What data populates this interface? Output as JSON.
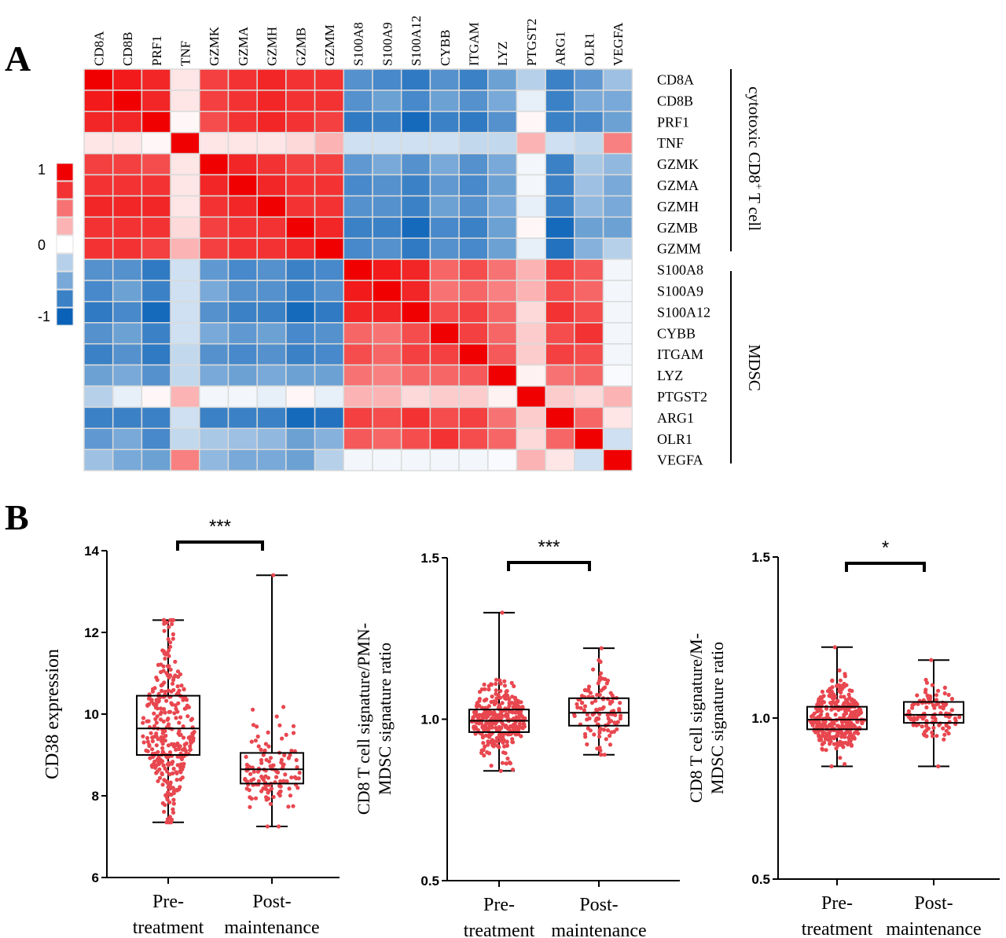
{
  "panels": {
    "a": "A",
    "b": "B"
  },
  "heatmap": {
    "genes": [
      "CD8A",
      "CD8B",
      "PRF1",
      "TNF",
      "GZMK",
      "GZMA",
      "GZMH",
      "GZMB",
      "GZMM",
      "S100A8",
      "S100A9",
      "S100A12",
      "CYBB",
      "ITGAM",
      "LYZ",
      "PTGST2",
      "ARG1",
      "OLR1",
      "VEGFA"
    ],
    "groups": [
      {
        "label": "cytotoxic CD8",
        "sup": "+",
        "suffix": " T cell"
      },
      {
        "label": "MDSC",
        "sup": "",
        "suffix": ""
      }
    ],
    "legend": {
      "ticks": [
        "1",
        "0",
        "-1"
      ]
    },
    "colors": {
      "neg": "#0a62b8",
      "mid": "#ffffff",
      "pos": "#f00000",
      "grid": "#dadada"
    }
  },
  "chart_data": [
    {
      "type": "heatmap",
      "rows": [
        "CD8A",
        "CD8B",
        "PRF1",
        "TNF",
        "GZMK",
        "GZMA",
        "GZMH",
        "GZMB",
        "GZMM",
        "S100A8",
        "S100A9",
        "S100A12",
        "CYBB",
        "ITGAM",
        "LYZ",
        "PTGST2",
        "ARG1",
        "OLR1",
        "VEGFA"
      ],
      "cols": [
        "CD8A",
        "CD8B",
        "PRF1",
        "TNF",
        "GZMK",
        "GZMA",
        "GZMH",
        "GZMB",
        "GZMM",
        "S100A8",
        "S100A9",
        "S100A12",
        "CYBB",
        "ITGAM",
        "LYZ",
        "PTGST2",
        "ARG1",
        "OLR1",
        "VEGFA"
      ],
      "values": [
        [
          1.0,
          0.9,
          0.85,
          0.1,
          0.75,
          0.8,
          0.85,
          0.8,
          0.8,
          -0.7,
          -0.75,
          -0.85,
          -0.7,
          -0.8,
          -0.6,
          -0.3,
          -0.8,
          -0.65,
          -0.4
        ],
        [
          0.9,
          1.0,
          0.85,
          0.1,
          0.75,
          0.8,
          0.85,
          0.8,
          0.8,
          -0.7,
          -0.6,
          -0.75,
          -0.6,
          -0.7,
          -0.55,
          -0.1,
          -0.8,
          -0.55,
          -0.55
        ],
        [
          0.85,
          0.85,
          1.0,
          0.03,
          0.7,
          0.8,
          0.85,
          0.8,
          0.75,
          -0.85,
          -0.8,
          -0.95,
          -0.8,
          -0.85,
          -0.7,
          0.03,
          -0.8,
          -0.75,
          -0.6
        ],
        [
          0.1,
          0.1,
          0.03,
          1.0,
          0.1,
          0.1,
          0.1,
          0.15,
          0.3,
          -0.2,
          -0.2,
          -0.2,
          -0.2,
          -0.25,
          -0.25,
          0.3,
          -0.2,
          -0.25,
          0.5
        ],
        [
          0.75,
          0.75,
          0.7,
          0.1,
          1.0,
          0.85,
          0.8,
          0.75,
          0.75,
          -0.65,
          -0.55,
          -0.7,
          -0.55,
          -0.7,
          -0.55,
          -0.05,
          -0.8,
          -0.35,
          -0.45
        ],
        [
          0.8,
          0.8,
          0.8,
          0.1,
          0.85,
          1.0,
          0.85,
          0.8,
          0.8,
          -0.75,
          -0.7,
          -0.8,
          -0.65,
          -0.75,
          -0.6,
          -0.05,
          -0.8,
          -0.4,
          -0.55
        ],
        [
          0.85,
          0.85,
          0.85,
          0.1,
          0.8,
          0.85,
          1.0,
          0.8,
          0.8,
          -0.7,
          -0.7,
          -0.8,
          -0.6,
          -0.7,
          -0.55,
          -0.1,
          -0.8,
          -0.45,
          -0.55
        ],
        [
          0.8,
          0.8,
          0.8,
          0.15,
          0.75,
          0.8,
          0.8,
          1.0,
          0.85,
          -0.8,
          -0.8,
          -0.95,
          -0.75,
          -0.8,
          -0.6,
          0.03,
          -0.95,
          -0.6,
          -0.6
        ],
        [
          0.8,
          0.8,
          0.75,
          0.3,
          0.75,
          0.8,
          0.8,
          0.85,
          1.0,
          -0.75,
          -0.7,
          -0.85,
          -0.7,
          -0.75,
          -0.6,
          -0.1,
          -0.9,
          -0.5,
          -0.3
        ],
        [
          -0.7,
          -0.7,
          -0.85,
          -0.2,
          -0.65,
          -0.75,
          -0.7,
          -0.8,
          -0.75,
          1.0,
          0.9,
          0.85,
          0.6,
          0.7,
          0.55,
          0.3,
          0.75,
          0.65,
          -0.05
        ],
        [
          -0.75,
          -0.6,
          -0.8,
          -0.2,
          -0.55,
          -0.7,
          -0.7,
          -0.8,
          -0.7,
          0.9,
          1.0,
          0.85,
          0.55,
          0.6,
          0.5,
          0.3,
          0.7,
          0.6,
          -0.05
        ],
        [
          -0.85,
          -0.75,
          -0.95,
          -0.2,
          -0.7,
          -0.8,
          -0.8,
          -0.95,
          -0.85,
          0.85,
          0.85,
          1.0,
          0.7,
          0.75,
          0.6,
          0.15,
          0.8,
          0.7,
          -0.05
        ],
        [
          -0.7,
          -0.6,
          -0.8,
          -0.2,
          -0.55,
          -0.65,
          -0.6,
          -0.75,
          -0.7,
          0.6,
          0.55,
          0.7,
          1.0,
          0.75,
          0.6,
          0.2,
          0.7,
          0.8,
          -0.05
        ],
        [
          -0.8,
          -0.7,
          -0.85,
          -0.25,
          -0.7,
          -0.75,
          -0.7,
          -0.8,
          -0.75,
          0.7,
          0.6,
          0.75,
          0.75,
          1.0,
          0.65,
          0.2,
          0.75,
          0.7,
          -0.05
        ],
        [
          -0.6,
          -0.55,
          -0.7,
          -0.25,
          -0.55,
          -0.6,
          -0.55,
          -0.6,
          -0.6,
          0.55,
          0.5,
          0.6,
          0.6,
          0.65,
          1.0,
          0.05,
          0.55,
          0.6,
          -0.03
        ],
        [
          -0.3,
          -0.1,
          0.03,
          0.3,
          -0.05,
          -0.05,
          -0.1,
          0.03,
          -0.1,
          0.3,
          0.3,
          0.15,
          0.2,
          0.2,
          0.05,
          1.0,
          0.2,
          0.15,
          0.3
        ],
        [
          -0.8,
          -0.8,
          -0.8,
          -0.2,
          -0.8,
          -0.8,
          -0.8,
          -0.95,
          -0.9,
          0.75,
          0.7,
          0.8,
          0.7,
          0.75,
          0.55,
          0.2,
          1.0,
          0.6,
          0.1
        ],
        [
          -0.65,
          -0.55,
          -0.75,
          -0.25,
          -0.35,
          -0.4,
          -0.45,
          -0.6,
          -0.5,
          0.65,
          0.6,
          0.7,
          0.8,
          0.7,
          0.6,
          0.15,
          0.6,
          1.0,
          -0.2
        ],
        [
          -0.4,
          -0.55,
          -0.6,
          0.5,
          -0.45,
          -0.55,
          -0.55,
          -0.6,
          -0.3,
          -0.05,
          -0.05,
          -0.05,
          -0.05,
          -0.05,
          -0.03,
          0.3,
          0.1,
          -0.2,
          1.0
        ]
      ],
      "legend_range": [
        -1,
        1
      ]
    },
    {
      "type": "box",
      "ylabel": "CD38 expression",
      "ylim": [
        6,
        14
      ],
      "yticks": [
        "6",
        "8",
        "10",
        "12",
        "14"
      ],
      "categories": [
        [
          "Pre-",
          "treatment"
        ],
        [
          "Post-",
          "maintenance"
        ]
      ],
      "significance": "***",
      "boxes": [
        {
          "min": 7.35,
          "q1": 9.0,
          "median": 9.65,
          "q3": 10.45,
          "max": 12.3,
          "n": 330
        },
        {
          "min": 7.25,
          "q1": 8.3,
          "median": 8.65,
          "q3": 9.05,
          "max": 13.4,
          "n": 130
        }
      ],
      "point_color": "#e8474f"
    },
    {
      "type": "box",
      "ylabel": [
        "CD8 T cell signature/PMN-",
        "MDSC signature ratio"
      ],
      "ylim": [
        0.5,
        1.5
      ],
      "yticks": [
        "0.5",
        "1.0",
        "1.5"
      ],
      "categories": [
        [
          "Pre-",
          "treatment"
        ],
        [
          "Post-",
          "maintenance"
        ]
      ],
      "significance": "***",
      "boxes": [
        {
          "min": 0.84,
          "q1": 0.96,
          "median": 0.995,
          "q3": 1.03,
          "max": 1.33,
          "n": 330
        },
        {
          "min": 0.89,
          "q1": 0.98,
          "median": 1.02,
          "q3": 1.065,
          "max": 1.22,
          "n": 110
        }
      ],
      "point_color": "#e8474f"
    },
    {
      "type": "box",
      "ylabel": [
        "CD8 T cell signature/M-",
        "MDSC signature ratio"
      ],
      "ylim": [
        0.5,
        1.5
      ],
      "yticks": [
        "0.5",
        "1.0",
        "1.5"
      ],
      "categories": [
        [
          "Pre-",
          "treatment"
        ],
        [
          "Post-",
          "maintenance"
        ]
      ],
      "significance": "*",
      "boxes": [
        {
          "min": 0.85,
          "q1": 0.965,
          "median": 0.995,
          "q3": 1.035,
          "max": 1.22,
          "n": 330
        },
        {
          "min": 0.85,
          "q1": 0.985,
          "median": 1.01,
          "q3": 1.05,
          "max": 1.18,
          "n": 110
        }
      ],
      "point_color": "#e8474f"
    }
  ]
}
